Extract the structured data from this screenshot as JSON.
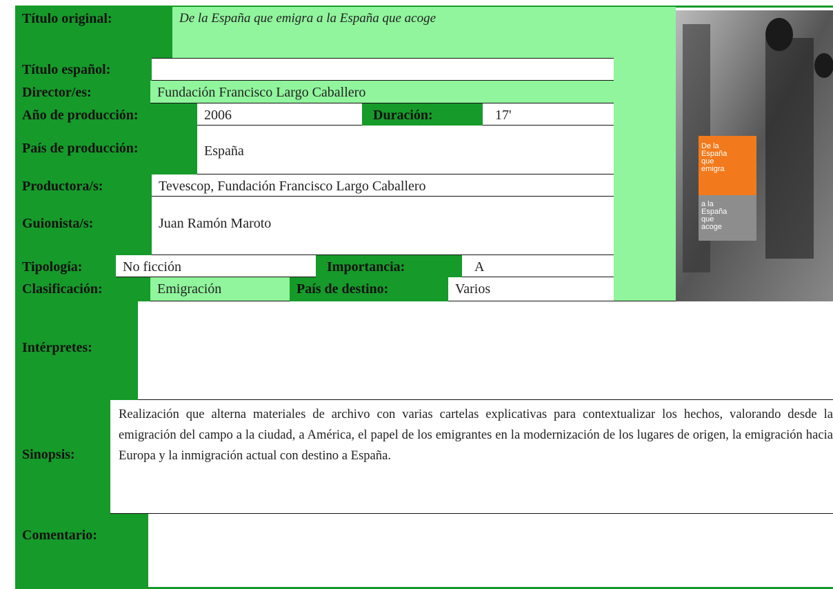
{
  "fields": {
    "titulo_original": {
      "label": "Título original:",
      "value": "De la España que emigra a la España que acoge"
    },
    "titulo_espanol": {
      "label": "Título español:"
    },
    "director": {
      "label": "Director/es:",
      "value": "Fundación Francisco Largo Caballero"
    },
    "anio": {
      "label": "Año de producción:",
      "value": "2006"
    },
    "duracion": {
      "label": "Duración:",
      "value": "17'"
    },
    "pais_produccion": {
      "label": "País de producción:",
      "value": "España"
    },
    "productora": {
      "label": "Productora/s:",
      "value": "Tevescop, Fundación Francisco Largo Caballero"
    },
    "guionista": {
      "label": "Guionista/s:",
      "value": "Juan Ramón Maroto"
    },
    "tipologia": {
      "label": "Tipología:",
      "value": "No ficción"
    },
    "importancia": {
      "label": "Importancia:",
      "value": "A"
    },
    "clasificacion": {
      "label": "Clasificación:",
      "value": "Emigración"
    },
    "pais_destino": {
      "label": "País de destino:",
      "value": "Varios"
    },
    "interpretes": {
      "label": "Intérpretes:"
    },
    "sinopsis": {
      "label": "Sinopsis:",
      "value": "Realización que alterna materiales de archivo con varias cartelas explicativas para contextualizar los hechos, valorando desde la emigración del campo a la ciudad, a América, el papel de los emigrantes en la modernización de los lugares de origen, la emigración hacia Europa y la inmigración actual con destino a España."
    },
    "comentario": {
      "label": "Comentario:"
    }
  },
  "poster": {
    "top_lines": [
      "De la",
      "España",
      "que",
      "emigra"
    ],
    "bottom_lines": [
      "a la",
      "España",
      "que",
      "acoge"
    ]
  }
}
